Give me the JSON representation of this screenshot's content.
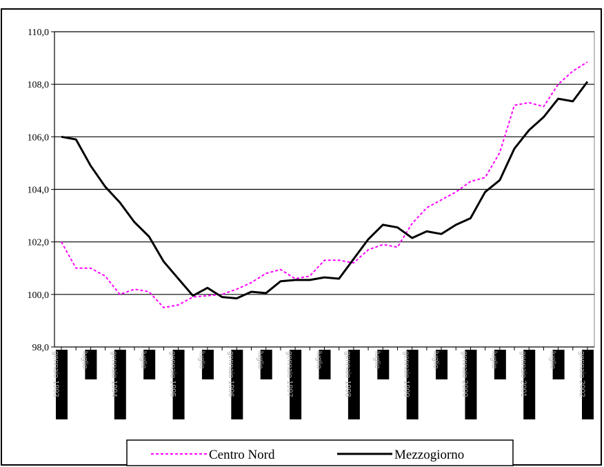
{
  "chart_data": {
    "type": "line",
    "title": "",
    "xlabel": "",
    "ylabel": "",
    "ylim": [
      98,
      110
    ],
    "yticks": [
      "98,0",
      "100,0",
      "102,0",
      "104,0",
      "106,0",
      "108,0",
      "110,0"
    ],
    "ytick_values": [
      98,
      100,
      102,
      104,
      106,
      108,
      110
    ],
    "grid": "horizontal",
    "legend_position": "bottom",
    "x": [
      "gennaio 1993",
      "",
      "luglio",
      "",
      "gennaio 1994",
      "",
      "luglio",
      "",
      "gennaio 1995",
      "",
      "luglio",
      "",
      "gennaio 1996",
      "",
      "luglio",
      "",
      "gennaio 1997",
      "",
      "luglio",
      "",
      "gennaio 1998",
      "",
      "luglio",
      "",
      "gennaio 1999",
      "",
      "luglio",
      "",
      "gennaio 2000",
      "",
      "luglio",
      "",
      "gennaio 2001",
      "",
      "luglio",
      "",
      "gennaio 2002"
    ],
    "series": [
      {
        "name": "Centro Nord",
        "color": "#ff00ff",
        "style": "dashed",
        "values": [
          102.0,
          101.0,
          101.0,
          100.7,
          100.0,
          100.2,
          100.1,
          99.5,
          99.6,
          99.9,
          99.95,
          100.0,
          100.2,
          100.45,
          100.8,
          100.95,
          100.6,
          100.7,
          101.3,
          101.3,
          101.2,
          101.7,
          101.9,
          101.8,
          102.7,
          103.3,
          103.6,
          103.9,
          104.3,
          104.45,
          105.4,
          107.2,
          107.3,
          107.15,
          108.0,
          108.5,
          108.85
        ]
      },
      {
        "name": "Mezzogiorno",
        "color": "#000000",
        "style": "solid",
        "values": [
          106.0,
          105.9,
          104.9,
          104.1,
          103.5,
          102.75,
          102.2,
          101.25,
          100.6,
          99.95,
          100.25,
          99.9,
          99.85,
          100.1,
          100.05,
          100.5,
          100.55,
          100.55,
          100.65,
          100.6,
          101.35,
          102.1,
          102.65,
          102.55,
          102.15,
          102.4,
          102.3,
          102.65,
          102.9,
          103.9,
          104.35,
          105.55,
          106.25,
          106.75,
          107.45,
          107.35,
          108.1
        ]
      }
    ]
  }
}
